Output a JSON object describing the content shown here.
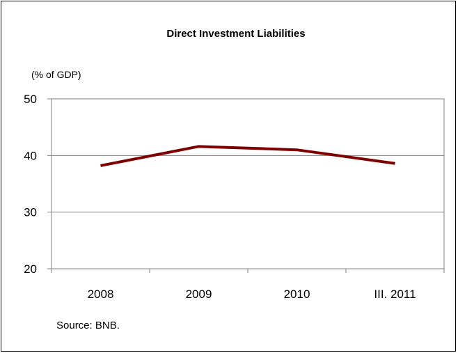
{
  "chart_data": {
    "type": "line",
    "title": "Direct Investment Liabilities",
    "unit_label": "(% of GDP)",
    "categories": [
      "2008",
      "2009",
      "2010",
      "III. 2011"
    ],
    "series": [
      {
        "values": [
          38.2,
          41.6,
          41.0,
          38.6
        ],
        "color": "#800000"
      }
    ],
    "ylim": [
      20,
      50
    ],
    "yticks": [
      20,
      30,
      40,
      50
    ],
    "grid": true,
    "legend": "none",
    "source": "Source: BNB."
  }
}
